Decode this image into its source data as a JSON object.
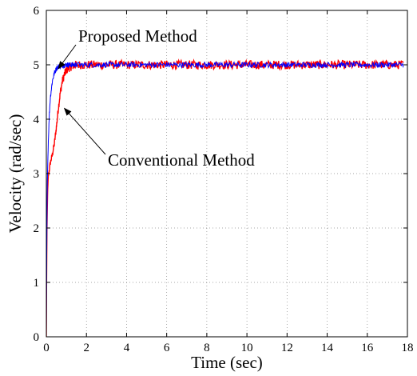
{
  "chart_data": {
    "type": "line",
    "title": "",
    "xlabel": "Time (sec)",
    "ylabel": "Velocity (rad/sec)",
    "xlim": [
      0,
      18
    ],
    "ylim": [
      0,
      6
    ],
    "xticks": [
      0,
      2,
      4,
      6,
      8,
      10,
      12,
      14,
      16,
      18
    ],
    "yticks": [
      0,
      1,
      2,
      3,
      4,
      5,
      6
    ],
    "grid": true,
    "series": [
      {
        "name": "Conventional Method",
        "color": "#ff0000",
        "x": [
          0,
          0.01,
          0.03,
          0.06,
          0.1,
          0.2,
          0.3,
          0.4,
          0.5,
          0.6,
          0.7,
          0.8,
          0.9,
          1.0,
          1.1,
          1.2,
          1.3,
          1.4,
          1.5,
          1.7,
          2.0,
          2.5,
          3.0,
          4.0,
          6.0,
          8.0,
          10.0,
          12.0,
          14.0,
          16.0,
          17.8
        ],
        "y": [
          0,
          0.8,
          1.9,
          2.6,
          2.95,
          3.2,
          3.35,
          3.55,
          3.85,
          4.2,
          4.5,
          4.7,
          4.82,
          4.9,
          4.94,
          4.96,
          4.98,
          4.99,
          5.0,
          5.0,
          5.0,
          5.0,
          5.0,
          5.0,
          5.0,
          5.0,
          5.0,
          5.0,
          5.0,
          5.0,
          5.0
        ],
        "noise_amplitude": 0.08
      },
      {
        "name": "Proposed Method",
        "color": "#0000ff",
        "x": [
          0,
          0.02,
          0.05,
          0.1,
          0.15,
          0.2,
          0.3,
          0.4,
          0.5,
          0.6,
          0.8,
          1.0,
          1.5,
          2.0,
          4.0,
          6.0,
          8.0,
          10.0,
          12.0,
          14.0,
          16.0,
          17.8
        ],
        "y": [
          0,
          1.5,
          2.9,
          3.6,
          4.1,
          4.4,
          4.7,
          4.85,
          4.93,
          4.97,
          4.99,
          5.0,
          5.0,
          5.0,
          5.0,
          5.0,
          5.0,
          5.0,
          5.0,
          5.0,
          5.0,
          5.0
        ],
        "noise_amplitude": 0.05
      }
    ],
    "annotations": [
      {
        "text": "Proposed Method",
        "arrow_to": [
          0.6,
          4.93
        ]
      },
      {
        "text": "Conventional Method",
        "arrow_to": [
          0.9,
          4.2
        ]
      }
    ]
  }
}
